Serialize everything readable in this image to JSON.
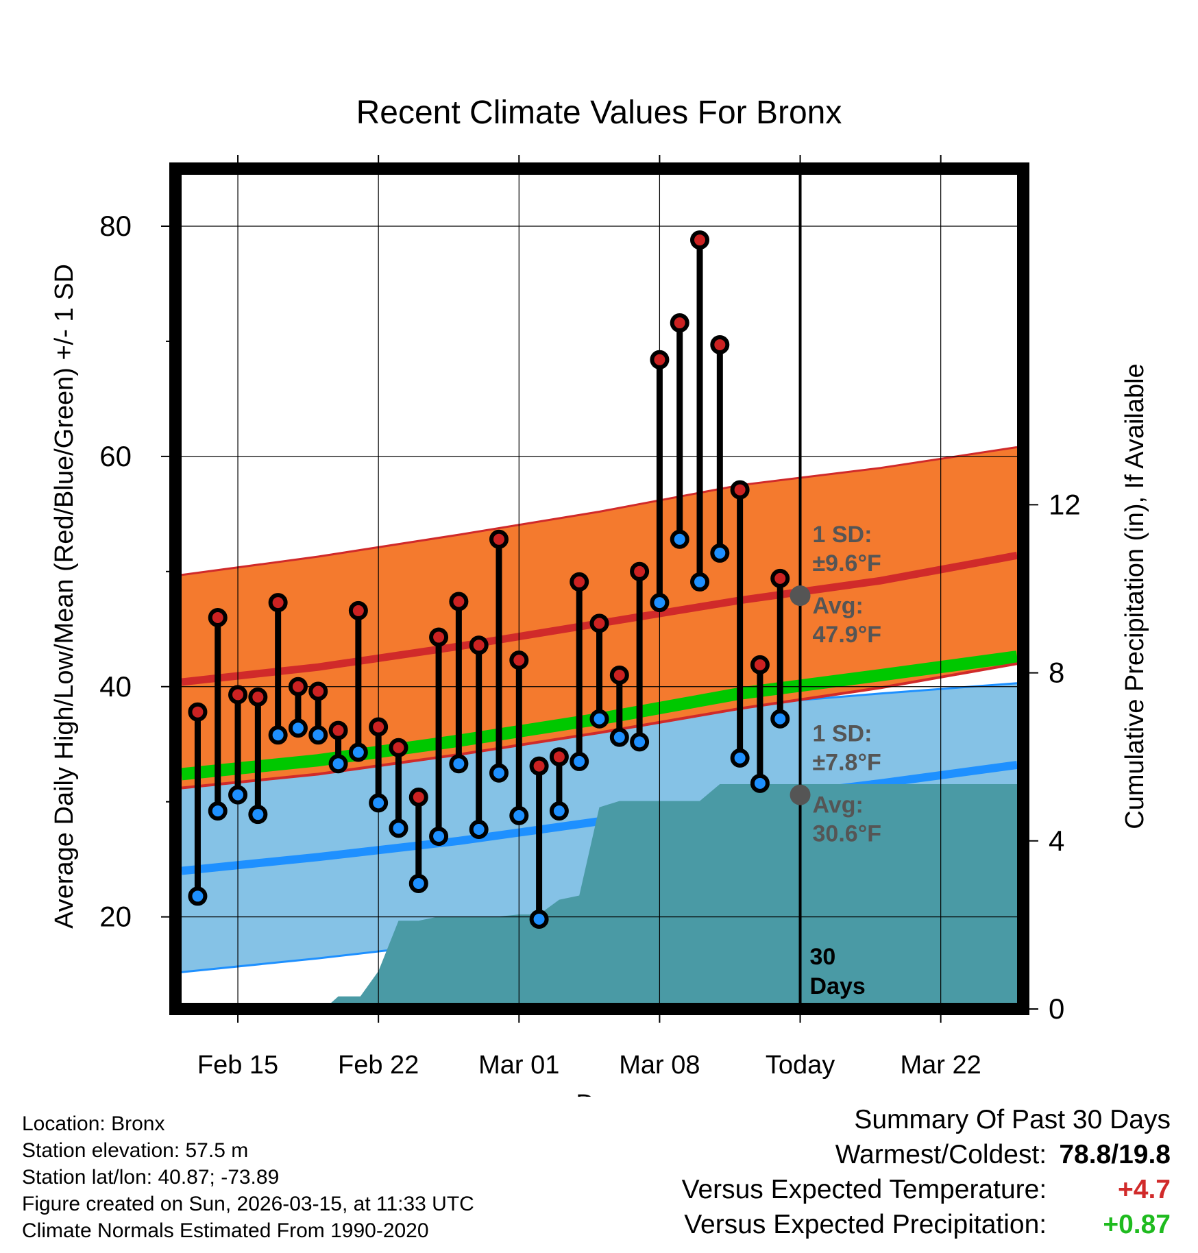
{
  "chart_data": {
    "type": "line",
    "title": "Recent Climate Values For Bronx",
    "xlabel": "Day",
    "ylabel": "Average Daily High/Low/Mean (Red/Blue/Green) +/- 1 SD",
    "ylabel_right": "Cumulative Precipitation (in), If Available",
    "x_range": [
      -2.8,
      38.8
    ],
    "ylim": [
      12,
      85
    ],
    "y_ticks": [
      20,
      40,
      60,
      80
    ],
    "y_minor_ticks": [
      30,
      50,
      70
    ],
    "y2lim": [
      0,
      20
    ],
    "y2_ticks": [
      0,
      4,
      8,
      12
    ],
    "x_ticks": [
      {
        "day": 0,
        "label": "Feb 15"
      },
      {
        "day": 7,
        "label": "Feb 22"
      },
      {
        "day": 14,
        "label": "Mar 01"
      },
      {
        "day": 21,
        "label": "Mar 08"
      },
      {
        "day": 28,
        "label": "Today"
      },
      {
        "day": 35,
        "label": "Mar 22"
      }
    ],
    "today_day": 28,
    "today_label_line1": "30",
    "today_label_line2": "Days",
    "normals": {
      "x": [
        -2.8,
        4,
        11,
        18,
        25,
        32,
        38.8
      ],
      "high_upper": [
        49.7,
        51.3,
        53.2,
        55.2,
        57.5,
        59.0,
        60.8
      ],
      "high_avg": [
        40.4,
        41.7,
        43.5,
        45.5,
        47.5,
        49.2,
        51.4
      ],
      "high_lower": [
        31.2,
        32.4,
        34.1,
        36.0,
        38.1,
        39.9,
        42.0
      ],
      "mean_avg": [
        32.4,
        33.6,
        35.3,
        37.2,
        39.4,
        41.0,
        42.6
      ],
      "low_upper": [
        32.6,
        33.6,
        34.9,
        36.5,
        38.4,
        39.4,
        40.3
      ],
      "low_avg": [
        24.0,
        25.2,
        26.6,
        28.3,
        30.1,
        31.6,
        33.2
      ],
      "low_lower": [
        15.2,
        16.4,
        17.8,
        19.6,
        21.6,
        23.5,
        25.9
      ]
    },
    "high_sd_label_line1": "1 SD:",
    "high_sd_label_line2": "±9.6°F",
    "high_avg_label_line1": "Avg:",
    "high_avg_label_line2": "47.9°F",
    "low_sd_label_line1": "1 SD:",
    "low_sd_label_line2": "±7.8°F",
    "low_avg_label_line1": "Avg:",
    "low_avg_label_line2": "30.6°F",
    "today_high_avg": 47.9,
    "today_low_avg": 30.6,
    "series": [
      {
        "name": "Daily High",
        "color": "#cc2222",
        "x": [
          -2,
          -1,
          0,
          1,
          2,
          3,
          4,
          5,
          6,
          7,
          8,
          9,
          10,
          11,
          12,
          13,
          14,
          15,
          16,
          17,
          18,
          19,
          20,
          21,
          22,
          23,
          24,
          25,
          26,
          27
        ],
        "values": [
          37.8,
          46.0,
          39.3,
          39.1,
          47.3,
          40.0,
          39.6,
          36.2,
          46.6,
          36.5,
          34.7,
          30.4,
          44.3,
          47.4,
          43.6,
          52.8,
          42.3,
          33.1,
          33.9,
          49.1,
          45.5,
          41.0,
          50.0,
          68.4,
          71.6,
          78.8,
          69.7,
          57.1,
          41.9,
          49.4
        ]
      },
      {
        "name": "Daily Low",
        "color": "#1e90ff",
        "x": [
          -2,
          -1,
          0,
          1,
          2,
          3,
          4,
          5,
          6,
          7,
          8,
          9,
          10,
          11,
          12,
          13,
          14,
          15,
          16,
          17,
          18,
          19,
          20,
          21,
          22,
          23,
          24,
          25,
          26,
          27
        ],
        "values": [
          21.8,
          29.2,
          30.6,
          28.9,
          35.8,
          36.4,
          35.8,
          33.3,
          34.3,
          29.9,
          27.7,
          22.9,
          27.0,
          33.3,
          27.6,
          32.5,
          28.8,
          19.8,
          29.2,
          33.5,
          37.2,
          35.6,
          35.2,
          47.3,
          52.8,
          49.1,
          51.6,
          33.8,
          31.6,
          37.2
        ]
      },
      {
        "name": "Cumulative Precipitation",
        "color": "#4a9aa5",
        "x": [
          4.3,
          5.0,
          6.1,
          7.0,
          8.0,
          9.0,
          10.0,
          11.0,
          12.0,
          13.0,
          14.0,
          15.0,
          16.0,
          17.0,
          18.0,
          19.0,
          20.0,
          21.0,
          22.0,
          23.0,
          24.0,
          25.0,
          26.0,
          27.0,
          28.0,
          32.0,
          38.8
        ],
        "values": [
          0.0,
          0.3,
          0.3,
          0.9,
          2.1,
          2.1,
          2.2,
          2.2,
          2.2,
          2.2,
          2.25,
          2.25,
          2.6,
          2.7,
          4.8,
          4.95,
          4.95,
          4.95,
          4.95,
          4.95,
          5.35,
          5.35,
          5.35,
          5.35,
          5.35,
          5.35,
          5.35
        ]
      }
    ],
    "legend": "none"
  },
  "info": {
    "location": "Location: Bronx",
    "elevation": "Station elevation: 57.5 m",
    "latlon": "Station lat/lon: 40.87; -73.89",
    "created": "Figure created on Sun, 2026-03-15, at 11:33 UTC",
    "normals": "Climate Normals Estimated From 1990-2020"
  },
  "summary": {
    "title": "Summary Of Past 30 Days",
    "warmest_label": "Warmest/Coldest:",
    "warmest_value": "78.8/19.8",
    "temp_label": "Versus Expected Temperature:",
    "temp_value": "+4.7",
    "precip_label": "Versus Expected Precipitation:",
    "precip_value": "+0.87"
  },
  "colors": {
    "high_band": "#f47a2e",
    "high_line": "#d02a2a",
    "mean_band": "#00c800",
    "low_band": "#85c2e6",
    "low_line": "#1e90ff",
    "precip": "#4a9aa5",
    "high_dot": "#cc2222",
    "low_dot": "#1e90ff",
    "avg_dot": "#555555",
    "annotation": "#555555"
  }
}
